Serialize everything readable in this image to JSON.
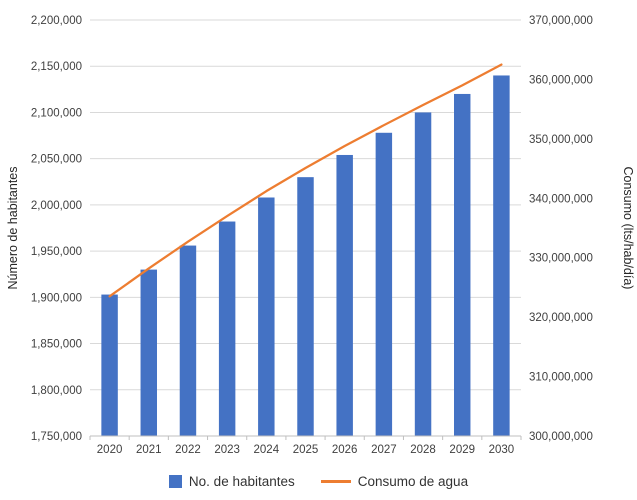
{
  "chart_data": {
    "type": "bar",
    "subtype": "combo-bar-line",
    "categories": [
      "2020",
      "2021",
      "2022",
      "2023",
      "2024",
      "2025",
      "2026",
      "2027",
      "2028",
      "2029",
      "2030"
    ],
    "series": [
      {
        "name": "No. de habitantes",
        "render": "bar",
        "axis": "left",
        "color": "#4472C4",
        "values": [
          1903000,
          1930000,
          1956000,
          1982000,
          2008000,
          2030000,
          2054000,
          2078000,
          2100000,
          2120000,
          2140000
        ]
      },
      {
        "name": "Consumo de agua",
        "render": "line",
        "axis": "right",
        "color": "#ED7D31",
        "values": [
          323500000,
          328200000,
          332700000,
          337000000,
          341200000,
          345100000,
          348800000,
          352300000,
          355700000,
          359000000,
          362500000
        ]
      }
    ],
    "left_axis": {
      "label": "Número de habitantes",
      "min": 1750000,
      "max": 2200000,
      "step": 50000
    },
    "right_axis": {
      "label": "Consumo (lts/hab/día)",
      "min": 300000000,
      "max": 370000000,
      "step": 10000000
    },
    "grid": true,
    "legend_position": "bottom",
    "gridline_color": "#d9d9d9",
    "axis_line_color": "#bfbfbf",
    "tick_label_color": "#404040",
    "axis_title_color": "#262626"
  }
}
